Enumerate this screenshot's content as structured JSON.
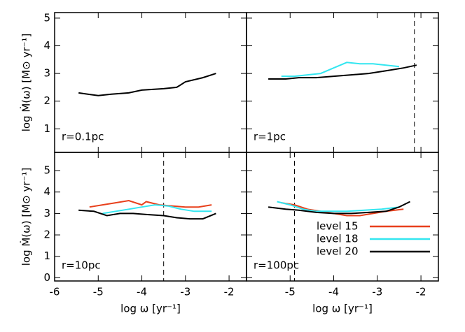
{
  "chart_data": [
    {
      "type": "line",
      "annotation": "r=0.1pc",
      "y_label": "log Ṁ(ω) [M⊙ yr⁻¹]",
      "xlim": [
        -6,
        -1.6
      ],
      "ylim": [
        0.15,
        5.2
      ],
      "xticks": [
        -6,
        -5,
        -4,
        -3,
        -2
      ],
      "yticks": [
        1,
        2,
        3,
        4,
        5
      ],
      "series": [
        {
          "color": "#000000",
          "x": [
            -5.45,
            -5.0,
            -4.7,
            -4.3,
            -4.0,
            -3.5,
            -3.2,
            -3.0,
            -2.6,
            -2.3
          ],
          "values": [
            2.3,
            2.2,
            2.25,
            2.3,
            2.4,
            2.45,
            2.5,
            2.7,
            2.85,
            3.0
          ]
        }
      ]
    },
    {
      "type": "line",
      "annotation": "r=1pc",
      "vline": -2.15,
      "xlim": [
        -6,
        -1.6
      ],
      "ylim": [
        0.15,
        5.2
      ],
      "xticks": [
        -6,
        -5,
        -4,
        -3,
        -2
      ],
      "yticks": [
        1,
        2,
        3,
        4,
        5
      ],
      "series": [
        {
          "color": "#000000",
          "x": [
            -5.5,
            -5.1,
            -4.8,
            -4.4,
            -4.0,
            -3.6,
            -3.2,
            -2.8,
            -2.4,
            -2.1
          ],
          "values": [
            2.8,
            2.8,
            2.85,
            2.85,
            2.9,
            2.95,
            3.0,
            3.1,
            3.2,
            3.3
          ]
        },
        {
          "color": "#33e6f0",
          "x": [
            -5.2,
            -4.9,
            -4.6,
            -4.3,
            -4.0,
            -3.7,
            -3.4,
            -3.1,
            -2.8,
            -2.5
          ],
          "values": [
            2.9,
            2.9,
            2.95,
            3.0,
            3.2,
            3.4,
            3.35,
            3.35,
            3.3,
            3.25
          ]
        }
      ]
    },
    {
      "type": "line",
      "annotation": "r=10pc",
      "y_label": "log Ṁ(ω) [M⊙ yr⁻¹]",
      "x_label": "log ω [yr⁻¹]",
      "vline": -3.5,
      "xlim": [
        -6,
        -1.6
      ],
      "ylim": [
        -0.15,
        5.85
      ],
      "xticks": [
        -6,
        -5,
        -4,
        -3,
        -2
      ],
      "yticks": [
        0,
        1,
        2,
        3,
        4,
        5
      ],
      "series": [
        {
          "color": "#e8401c",
          "x": [
            -5.2,
            -4.9,
            -4.6,
            -4.3,
            -4.0,
            -3.9,
            -3.6,
            -3.3,
            -3.0,
            -2.7,
            -2.4
          ],
          "values": [
            3.3,
            3.4,
            3.5,
            3.6,
            3.4,
            3.55,
            3.4,
            3.35,
            3.3,
            3.3,
            3.4
          ]
        },
        {
          "color": "#33e6f0",
          "x": [
            -4.9,
            -4.6,
            -4.3,
            -4.0,
            -3.7,
            -3.4,
            -3.1,
            -2.8,
            -2.4
          ],
          "values": [
            3.0,
            3.1,
            3.2,
            3.3,
            3.4,
            3.35,
            3.2,
            3.1,
            3.1
          ]
        },
        {
          "color": "#000000",
          "x": [
            -5.45,
            -5.1,
            -4.8,
            -4.5,
            -4.2,
            -3.9,
            -3.5,
            -3.2,
            -2.9,
            -2.6,
            -2.3
          ],
          "values": [
            3.15,
            3.1,
            2.9,
            3.0,
            3.0,
            2.95,
            2.9,
            2.8,
            2.75,
            2.75,
            3.0
          ]
        }
      ]
    },
    {
      "type": "line",
      "annotation": "r=100pc",
      "x_label": "log ω [yr⁻¹]",
      "vline": -4.9,
      "legend": "lower right",
      "xlim": [
        -6,
        -1.6
      ],
      "ylim": [
        -0.15,
        5.85
      ],
      "xticks": [
        -5,
        -4,
        -3,
        -2
      ],
      "yticks": [
        0,
        1,
        2,
        3,
        4,
        5
      ],
      "series": [
        {
          "name": "level 15",
          "color": "#e8401c",
          "x": [
            -5.2,
            -4.9,
            -4.6,
            -4.3,
            -4.0,
            -3.7,
            -3.4,
            -3.1,
            -2.8,
            -2.4
          ],
          "values": [
            3.5,
            3.4,
            3.2,
            3.1,
            3.0,
            2.9,
            2.9,
            3.0,
            3.1,
            3.2
          ]
        },
        {
          "name": "level 18",
          "color": "#33e6f0",
          "x": [
            -5.3,
            -5.0,
            -4.7,
            -4.4,
            -4.1,
            -3.7,
            -3.3,
            -2.9,
            -2.5
          ],
          "values": [
            3.55,
            3.4,
            3.2,
            3.1,
            3.1,
            3.1,
            3.15,
            3.2,
            3.3
          ]
        },
        {
          "name": "level 20",
          "color": "#000000",
          "x": [
            -5.5,
            -5.1,
            -4.8,
            -4.4,
            -4.0,
            -3.6,
            -3.2,
            -2.8,
            -2.5,
            -2.25
          ],
          "values": [
            3.3,
            3.2,
            3.15,
            3.05,
            3.0,
            3.0,
            3.05,
            3.1,
            3.3,
            3.55
          ]
        }
      ]
    }
  ]
}
